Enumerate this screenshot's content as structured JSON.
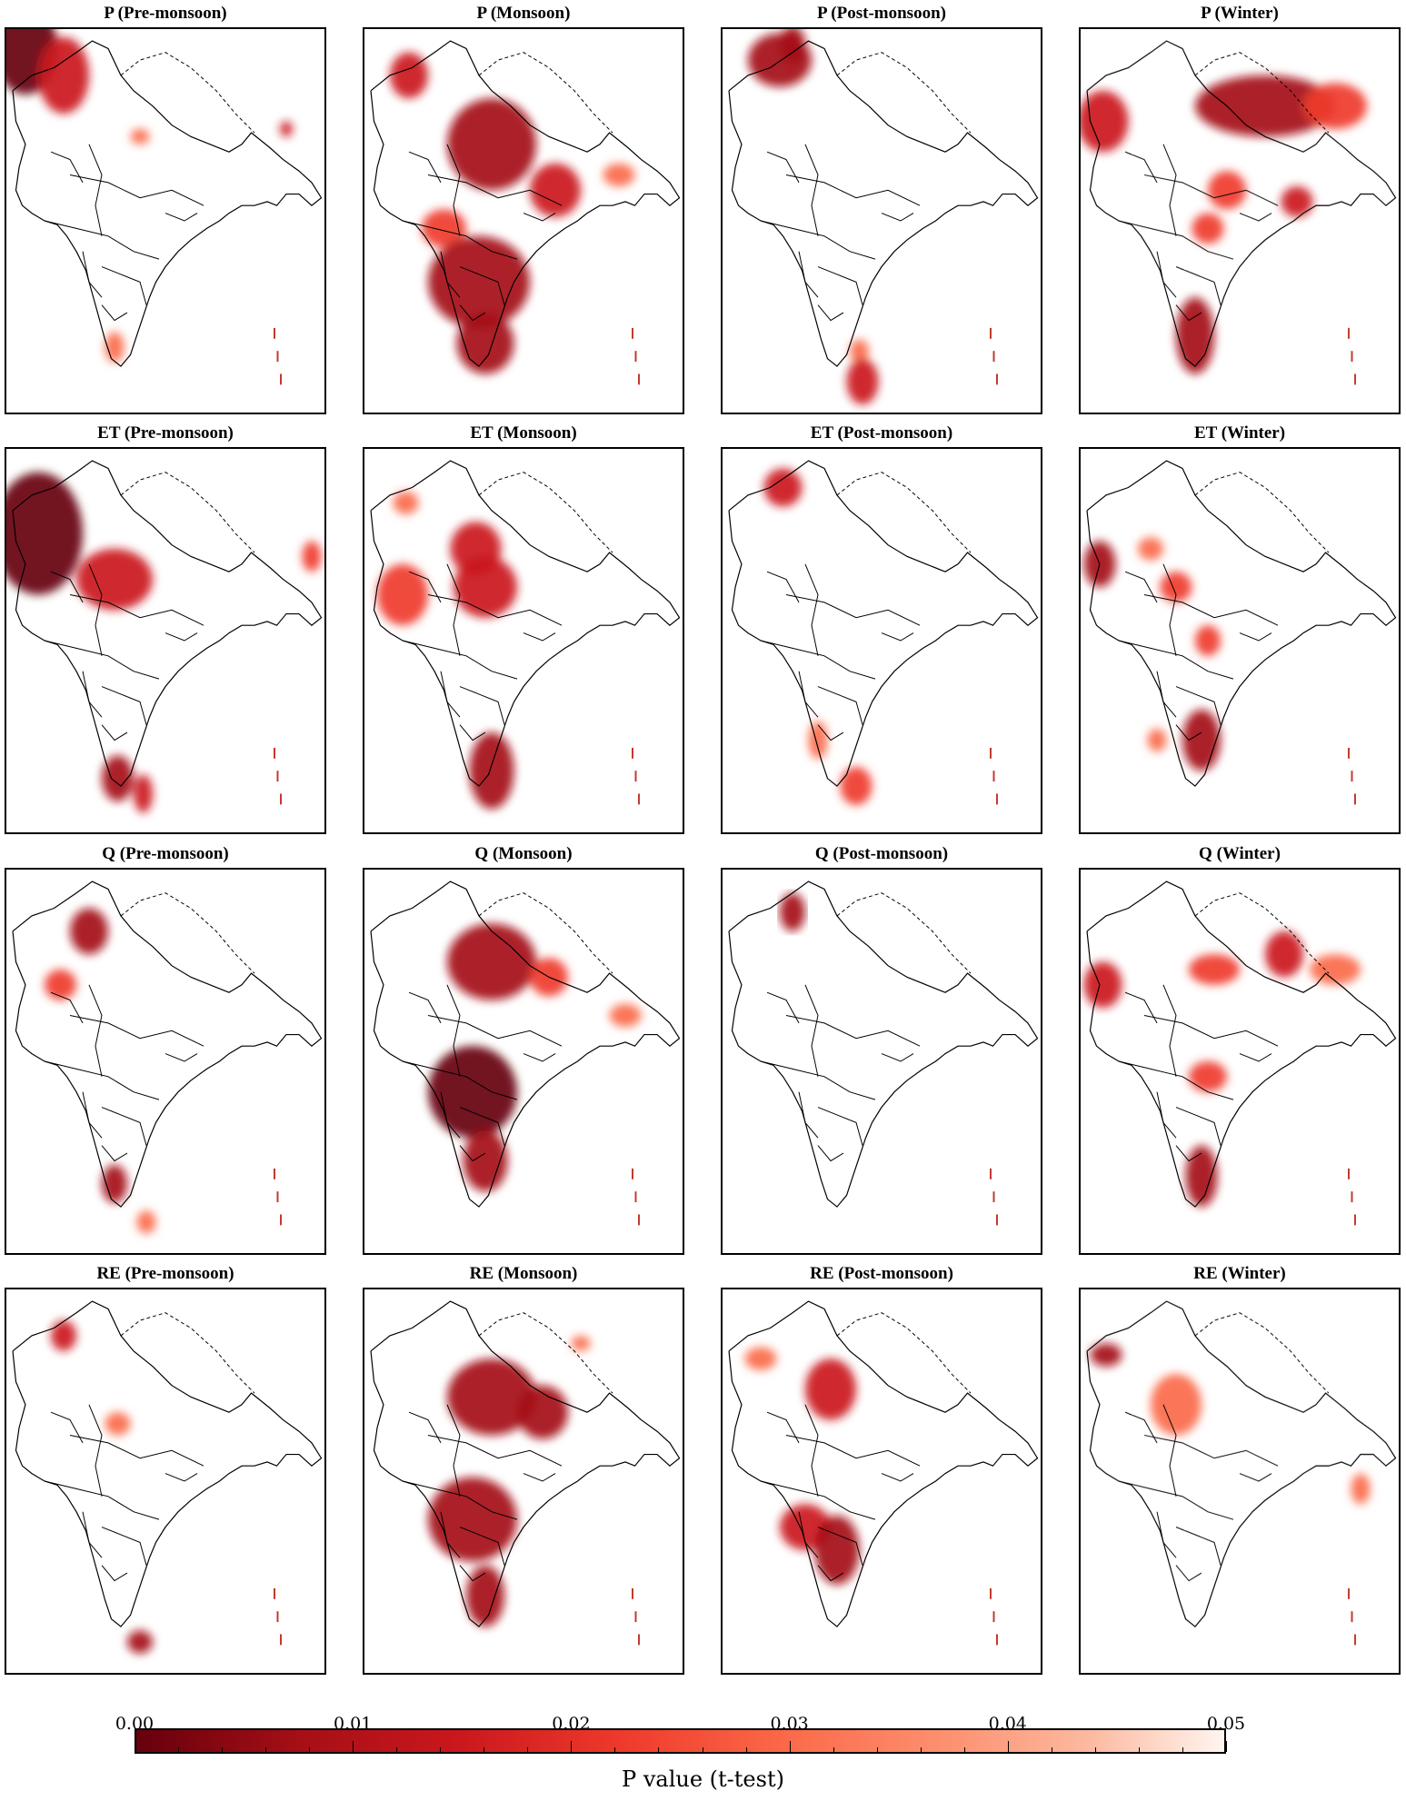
{
  "panels": [
    {
      "title": "P (Pre-monsoon)",
      "blobs": [
        [
          0.06,
          0.05,
          0.1,
          0.12,
          0.95
        ],
        [
          0.18,
          0.12,
          0.08,
          0.1,
          0.7
        ],
        [
          0.42,
          0.28,
          0.03,
          0.02,
          0.5
        ],
        [
          0.88,
          0.26,
          0.02,
          0.02,
          0.7
        ],
        [
          0.34,
          0.83,
          0.03,
          0.04,
          0.5
        ]
      ]
    },
    {
      "title": "P (Monsoon)",
      "blobs": [
        [
          0.14,
          0.12,
          0.06,
          0.06,
          0.7
        ],
        [
          0.4,
          0.3,
          0.14,
          0.12,
          0.85
        ],
        [
          0.6,
          0.42,
          0.08,
          0.07,
          0.7
        ],
        [
          0.25,
          0.52,
          0.07,
          0.05,
          0.6
        ],
        [
          0.36,
          0.66,
          0.16,
          0.12,
          0.9
        ],
        [
          0.38,
          0.82,
          0.09,
          0.08,
          0.85
        ],
        [
          0.8,
          0.38,
          0.05,
          0.03,
          0.5
        ]
      ]
    },
    {
      "title": "P (Post-monsoon)",
      "blobs": [
        [
          0.18,
          0.08,
          0.1,
          0.07,
          0.85
        ],
        [
          0.22,
          0.04,
          0.04,
          0.05,
          0.9
        ],
        [
          0.43,
          0.84,
          0.03,
          0.03,
          0.5
        ],
        [
          0.44,
          0.92,
          0.05,
          0.06,
          0.75
        ]
      ]
    },
    {
      "title": "P (Winter)",
      "blobs": [
        [
          0.07,
          0.24,
          0.08,
          0.08,
          0.75
        ],
        [
          0.58,
          0.2,
          0.22,
          0.08,
          0.85
        ],
        [
          0.8,
          0.2,
          0.1,
          0.06,
          0.6
        ],
        [
          0.46,
          0.42,
          0.06,
          0.05,
          0.6
        ],
        [
          0.4,
          0.52,
          0.05,
          0.04,
          0.6
        ],
        [
          0.36,
          0.8,
          0.06,
          0.1,
          0.85
        ],
        [
          0.68,
          0.45,
          0.05,
          0.04,
          0.7
        ]
      ]
    },
    {
      "title": "ET (Pre-monsoon)",
      "blobs": [
        [
          0.1,
          0.22,
          0.14,
          0.16,
          0.95
        ],
        [
          0.34,
          0.34,
          0.12,
          0.08,
          0.75
        ],
        [
          0.96,
          0.28,
          0.03,
          0.04,
          0.6
        ],
        [
          0.35,
          0.86,
          0.05,
          0.06,
          0.8
        ],
        [
          0.43,
          0.9,
          0.03,
          0.05,
          0.7
        ]
      ]
    },
    {
      "title": "ET (Monsoon)",
      "blobs": [
        [
          0.35,
          0.26,
          0.08,
          0.07,
          0.75
        ],
        [
          0.38,
          0.36,
          0.1,
          0.08,
          0.7
        ],
        [
          0.12,
          0.38,
          0.08,
          0.08,
          0.6
        ],
        [
          0.4,
          0.84,
          0.07,
          0.1,
          0.85
        ],
        [
          0.13,
          0.14,
          0.04,
          0.03,
          0.5
        ]
      ]
    },
    {
      "title": "ET (Post-monsoon)",
      "blobs": [
        [
          0.19,
          0.1,
          0.06,
          0.05,
          0.75
        ],
        [
          0.3,
          0.76,
          0.03,
          0.05,
          0.5
        ],
        [
          0.42,
          0.88,
          0.05,
          0.05,
          0.6
        ]
      ]
    },
    {
      "title": "ET (Winter)",
      "blobs": [
        [
          0.06,
          0.3,
          0.05,
          0.06,
          0.85
        ],
        [
          0.22,
          0.26,
          0.04,
          0.03,
          0.5
        ],
        [
          0.3,
          0.36,
          0.05,
          0.04,
          0.6
        ],
        [
          0.4,
          0.5,
          0.04,
          0.04,
          0.6
        ],
        [
          0.38,
          0.76,
          0.06,
          0.08,
          0.8
        ],
        [
          0.24,
          0.76,
          0.03,
          0.03,
          0.5
        ]
      ]
    },
    {
      "title": "Q (Pre-monsoon)",
      "blobs": [
        [
          0.26,
          0.16,
          0.06,
          0.06,
          0.8
        ],
        [
          0.17,
          0.3,
          0.05,
          0.04,
          0.6
        ],
        [
          0.34,
          0.82,
          0.04,
          0.05,
          0.8
        ],
        [
          0.44,
          0.92,
          0.03,
          0.03,
          0.5
        ]
      ]
    },
    {
      "title": "Q (Monsoon)",
      "blobs": [
        [
          0.4,
          0.24,
          0.14,
          0.1,
          0.85
        ],
        [
          0.58,
          0.28,
          0.06,
          0.05,
          0.6
        ],
        [
          0.34,
          0.58,
          0.14,
          0.12,
          0.95
        ],
        [
          0.38,
          0.76,
          0.07,
          0.08,
          0.85
        ],
        [
          0.82,
          0.38,
          0.05,
          0.03,
          0.5
        ]
      ]
    },
    {
      "title": "Q (Post-monsoon)",
      "blobs": [
        [
          0.22,
          0.11,
          0.04,
          0.05,
          0.9
        ]
      ]
    },
    {
      "title": "Q (Winter)",
      "blobs": [
        [
          0.07,
          0.3,
          0.06,
          0.06,
          0.75
        ],
        [
          0.42,
          0.26,
          0.08,
          0.04,
          0.6
        ],
        [
          0.64,
          0.22,
          0.06,
          0.06,
          0.75
        ],
        [
          0.8,
          0.26,
          0.08,
          0.04,
          0.5
        ],
        [
          0.4,
          0.54,
          0.06,
          0.04,
          0.6
        ],
        [
          0.38,
          0.8,
          0.05,
          0.08,
          0.8
        ]
      ]
    },
    {
      "title": "RE (Pre-monsoon)",
      "blobs": [
        [
          0.18,
          0.12,
          0.04,
          0.04,
          0.7
        ],
        [
          0.35,
          0.35,
          0.04,
          0.03,
          0.4
        ],
        [
          0.42,
          0.92,
          0.04,
          0.03,
          0.8
        ]
      ]
    },
    {
      "title": "RE (Monsoon)",
      "blobs": [
        [
          0.4,
          0.28,
          0.14,
          0.1,
          0.85
        ],
        [
          0.56,
          0.32,
          0.08,
          0.07,
          0.8
        ],
        [
          0.34,
          0.6,
          0.14,
          0.11,
          0.9
        ],
        [
          0.38,
          0.8,
          0.06,
          0.08,
          0.8
        ],
        [
          0.68,
          0.14,
          0.03,
          0.02,
          0.5
        ]
      ]
    },
    {
      "title": "RE (Post-monsoon)",
      "blobs": [
        [
          0.34,
          0.26,
          0.08,
          0.08,
          0.7
        ],
        [
          0.26,
          0.62,
          0.08,
          0.06,
          0.75
        ],
        [
          0.36,
          0.68,
          0.07,
          0.09,
          0.8
        ],
        [
          0.12,
          0.18,
          0.05,
          0.03,
          0.5
        ]
      ]
    },
    {
      "title": "RE (Winter)",
      "blobs": [
        [
          0.08,
          0.17,
          0.05,
          0.03,
          0.8
        ],
        [
          0.3,
          0.3,
          0.08,
          0.08,
          0.45
        ],
        [
          0.88,
          0.52,
          0.03,
          0.04,
          0.5
        ]
      ]
    }
  ],
  "colorbar": {
    "ticks": [
      "0.00",
      "0.01",
      "0.02",
      "0.03",
      "0.04",
      "0.05"
    ],
    "label": "P value (t-test)",
    "vmin": 0.0,
    "vmax": 0.05,
    "colors": [
      "#67000d",
      "#a50f15",
      "#cb181d",
      "#ef3b2c",
      "#fb6a4a",
      "#fc9272",
      "#fcbba1",
      "#fff5f0"
    ]
  }
}
